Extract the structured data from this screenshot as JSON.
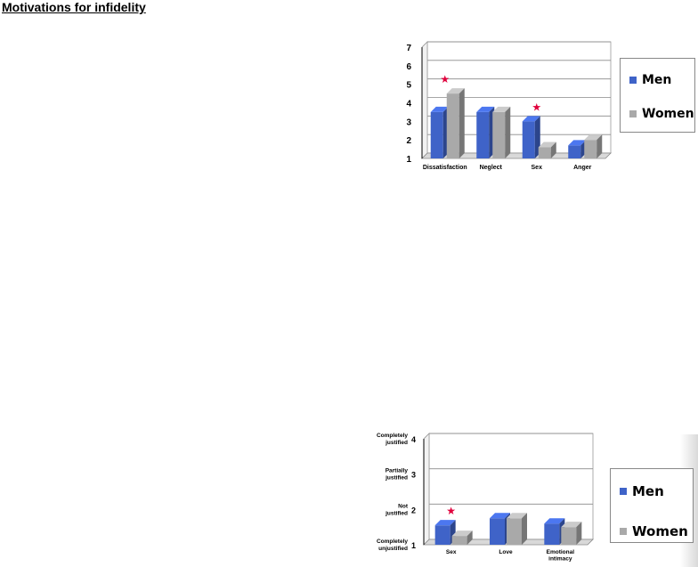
{
  "page": {
    "title": "Motivations for infidelity"
  },
  "colors": {
    "men": "#3f63c8",
    "women": "#a9a9a9",
    "star": "#e0003c",
    "grid": "#8a8a8a"
  },
  "legend_top": {
    "men_label": "Men",
    "women_label": "Women"
  },
  "legend_bottom": {
    "men_label": "Men",
    "women_label": "Women"
  },
  "chart_data": [
    {
      "type": "bar",
      "categories": [
        "Dissatisfaction",
        "Neglect",
        "Sex",
        "Anger"
      ],
      "series": [
        {
          "name": "Men",
          "values": [
            3.5,
            3.5,
            3.0,
            1.7
          ]
        },
        {
          "name": "Women",
          "values": [
            4.5,
            3.5,
            1.6,
            2.0
          ]
        }
      ],
      "yticks": [
        "1",
        "2",
        "3",
        "4",
        "5",
        "6",
        "7"
      ],
      "ylim": [
        1,
        7
      ],
      "grid": true,
      "legend": "right",
      "annotations": [
        {
          "symbol": "★",
          "category": "Dissatisfaction"
        },
        {
          "symbol": "★",
          "category": "Sex"
        }
      ]
    },
    {
      "type": "bar",
      "categories": [
        "Sex",
        "Love",
        "Emotional intimacy"
      ],
      "category_lines": [
        [
          "Sex"
        ],
        [
          "Love"
        ],
        [
          "Emotional",
          "intimacy"
        ]
      ],
      "series": [
        {
          "name": "Men",
          "values": [
            1.55,
            1.75,
            1.6
          ]
        },
        {
          "name": "Women",
          "values": [
            1.25,
            1.75,
            1.5
          ]
        }
      ],
      "yticks": [
        "1",
        "2",
        "3",
        "4"
      ],
      "ylim": [
        1,
        4
      ],
      "y_labels": [
        {
          "value": 1,
          "lines": [
            "Completely",
            "unjustified"
          ]
        },
        {
          "value": 2,
          "lines": [
            "Not",
            "justified"
          ]
        },
        {
          "value": 3,
          "lines": [
            "Partially",
            "justified"
          ]
        },
        {
          "value": 4,
          "lines": [
            "Completely",
            "justified"
          ]
        }
      ],
      "grid": true,
      "legend": "right",
      "annotations": [
        {
          "symbol": "★",
          "category": "Sex"
        }
      ]
    }
  ]
}
